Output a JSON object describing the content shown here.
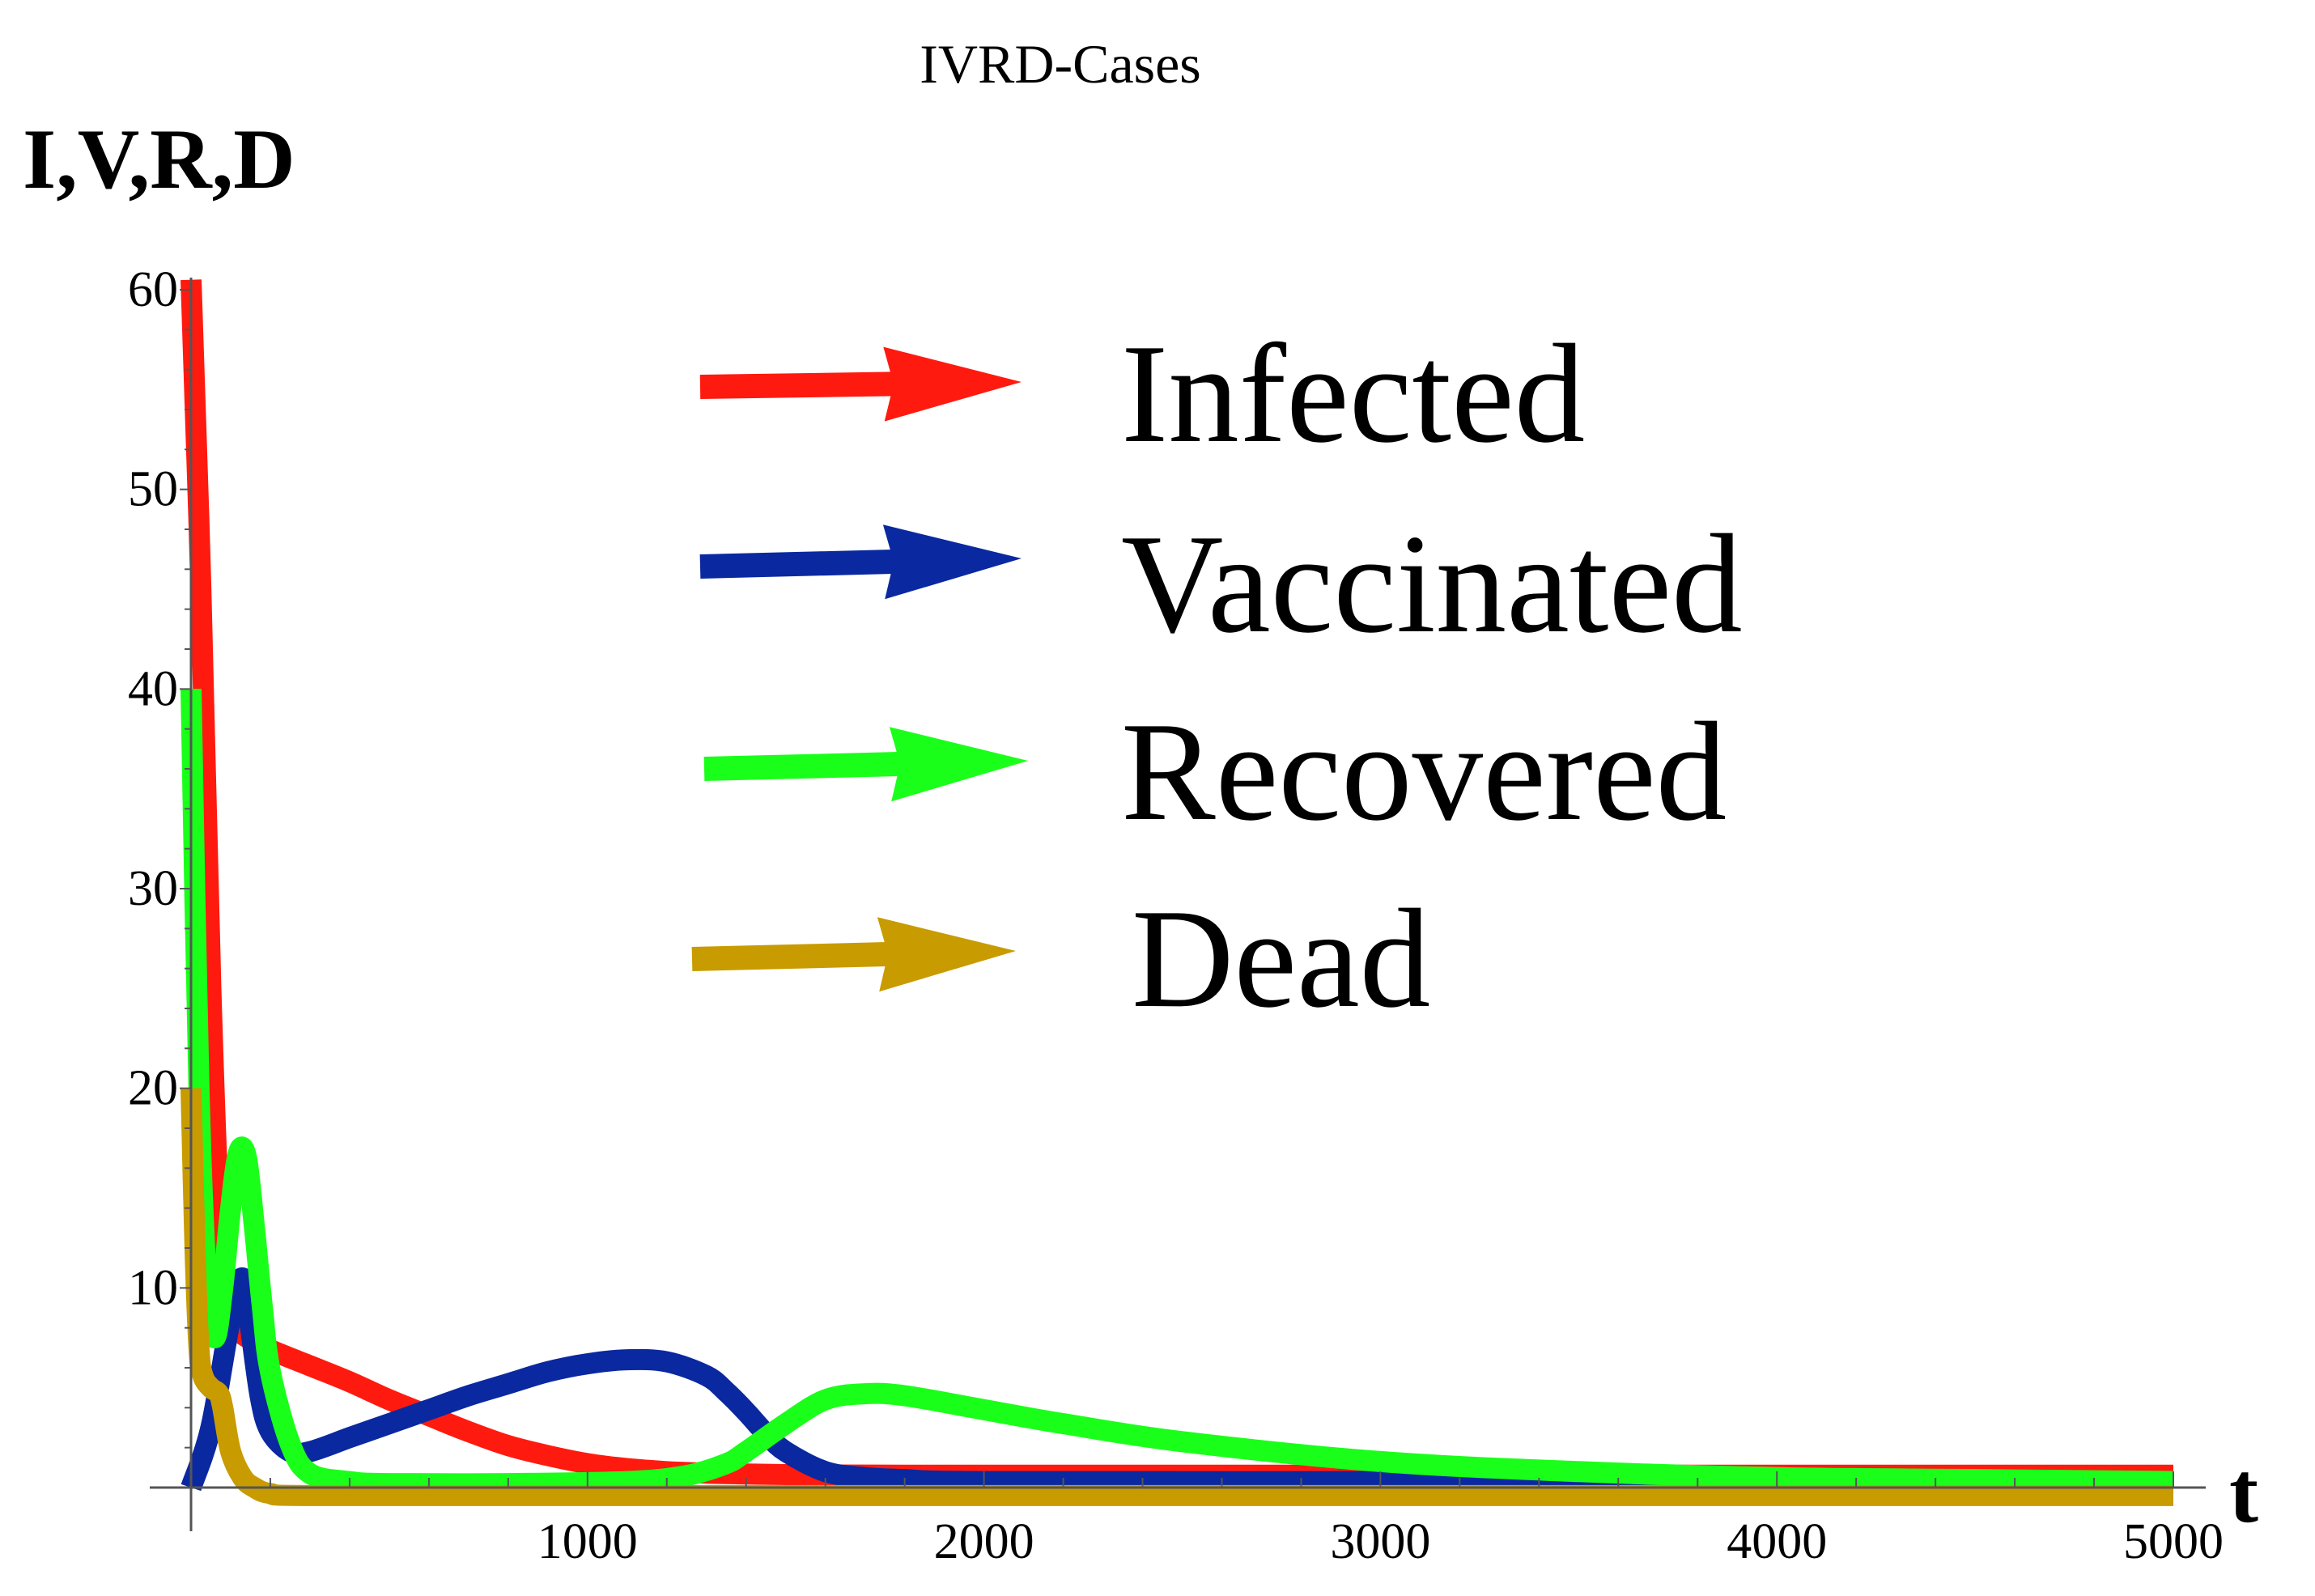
{
  "chart_data": {
    "type": "line",
    "title": "IVRD-Cases",
    "ylabel": "I,V,R,D",
    "xlabel": "t",
    "xlim": [
      0,
      5000
    ],
    "ylim": [
      0,
      60
    ],
    "xticks": [
      "1000",
      "2000",
      "3000",
      "4000",
      "5000"
    ],
    "yticks": [
      "10",
      "20",
      "30",
      "40",
      "50",
      "60"
    ],
    "xtick_values": [
      1000,
      2000,
      3000,
      4000,
      5000
    ],
    "ytick_values": [
      10,
      20,
      30,
      40,
      50,
      60
    ],
    "grid": false,
    "legend_position": "top-right",
    "series": [
      {
        "name": "Infected",
        "color": "#ff1a0f",
        "x": [
          0,
          25,
          50,
          75,
          100,
          150,
          200,
          300,
          400,
          500,
          600,
          700,
          800,
          900,
          1000,
          1100,
          1200,
          1300,
          1400,
          1500,
          1600,
          1800,
          2000,
          2500,
          3000,
          4000,
          5000
        ],
        "y": [
          60.5,
          45,
          25,
          12,
          8.5,
          7.4,
          6.9,
          6.1,
          5.3,
          4.4,
          3.6,
          2.8,
          2.1,
          1.6,
          1.2,
          0.95,
          0.8,
          0.72,
          0.68,
          0.65,
          0.63,
          0.62,
          0.62,
          0.62,
          0.62,
          0.62,
          0.62
        ]
      },
      {
        "name": "Vaccinated",
        "color": "#0a28a0",
        "x": [
          0,
          50,
          100,
          130,
          150,
          175,
          200,
          250,
          300,
          400,
          500,
          600,
          700,
          800,
          900,
          1000,
          1100,
          1200,
          1300,
          1350,
          1400,
          1450,
          1500,
          1600,
          1700,
          1800,
          2000,
          3000,
          4000,
          5000
        ],
        "y": [
          0,
          3,
          8.5,
          10.5,
          8,
          4.5,
          2.8,
          1.8,
          1.8,
          2.5,
          3.2,
          3.9,
          4.6,
          5.2,
          5.8,
          6.2,
          6.4,
          6.3,
          5.6,
          4.8,
          3.8,
          2.7,
          1.8,
          0.8,
          0.5,
          0.4,
          0.3,
          0.3,
          0.3,
          0.3
        ]
      },
      {
        "name": "Recovered",
        "color": "#1aff1a",
        "x": [
          0,
          20,
          40,
          60,
          80,
          100,
          120,
          140,
          160,
          180,
          200,
          250,
          300,
          400,
          500,
          800,
          1100,
          1250,
          1350,
          1400,
          1500,
          1600,
          1700,
          1800,
          2000,
          2200,
          2500,
          3000,
          3500,
          4000,
          4500,
          5000
        ],
        "y": [
          40,
          20,
          10,
          7.5,
          10,
          14,
          16.8,
          16.5,
          13,
          9,
          5.8,
          2.2,
          0.7,
          0.3,
          0.2,
          0.2,
          0.3,
          0.6,
          1.2,
          1.8,
          3.2,
          4.4,
          4.7,
          4.6,
          3.9,
          3.2,
          2.3,
          1.3,
          0.8,
          0.5,
          0.4,
          0.3
        ]
      },
      {
        "name": "Dead",
        "color": "#c89b00",
        "x": [
          0,
          10,
          20,
          30,
          50,
          70,
          80,
          100,
          130,
          160,
          200,
          300,
          1000,
          2000,
          3000,
          4000,
          5000
        ],
        "y": [
          20,
          12,
          7,
          5.6,
          5,
          4.7,
          4,
          1.8,
          0.5,
          0,
          -0.3,
          -0.4,
          -0.4,
          -0.4,
          -0.4,
          -0.4,
          -0.4
        ]
      }
    ]
  }
}
